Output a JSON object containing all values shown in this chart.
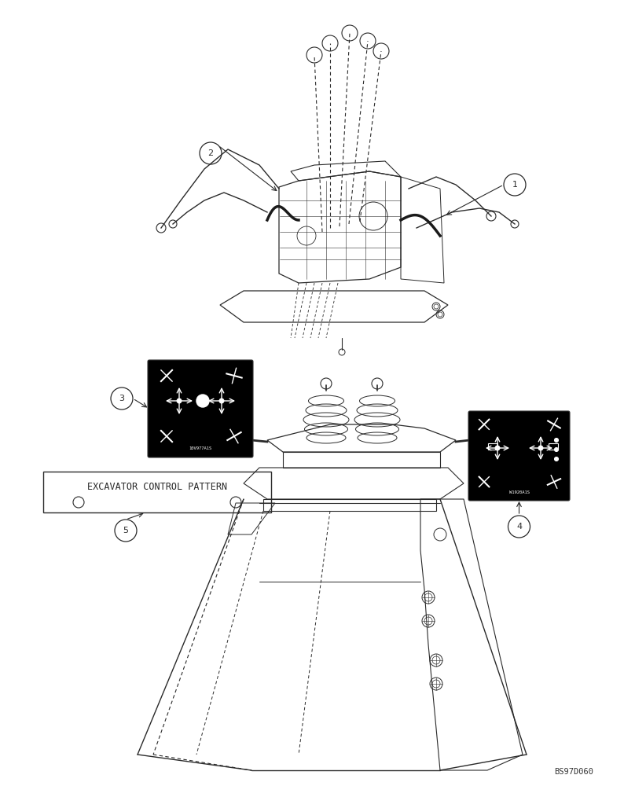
{
  "bg_color": "#ffffff",
  "line_color": "#2a2a2a",
  "watermark": "BS97D060",
  "label_text": "EXCAVATOR CONTROL PATTERN",
  "fig_width": 8.08,
  "fig_height": 10.0,
  "dpi": 100
}
